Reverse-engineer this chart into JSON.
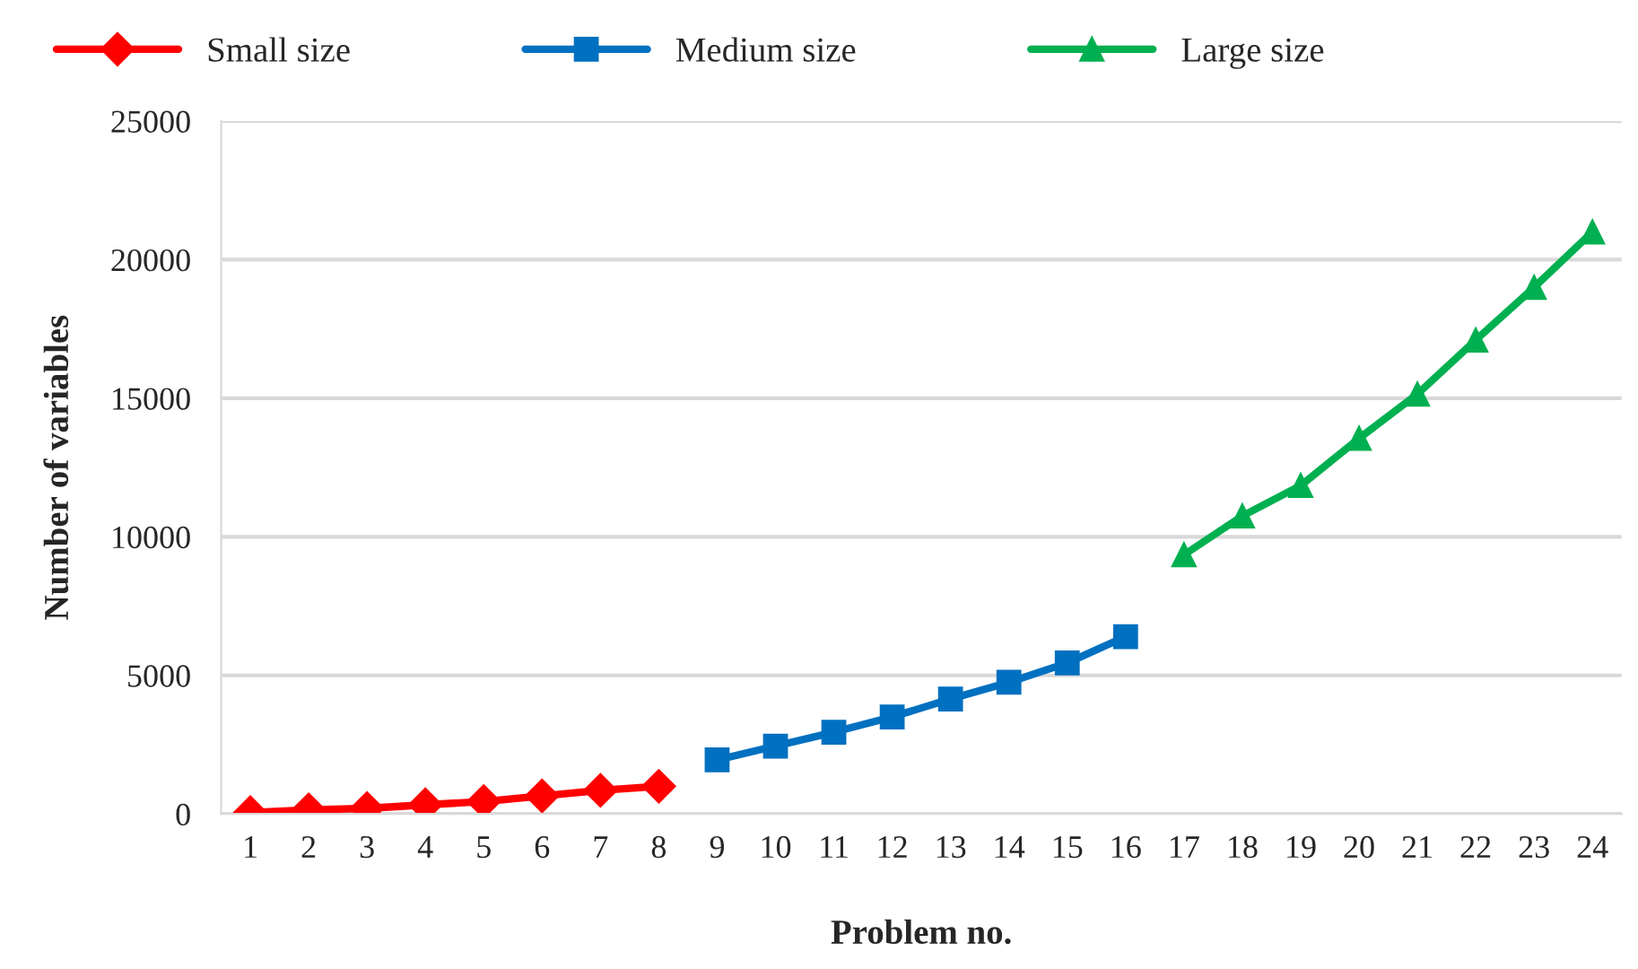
{
  "chart_data": {
    "type": "line",
    "xlabel": "Problem no.",
    "ylabel": "Number of variables",
    "categories": [
      "1",
      "2",
      "3",
      "4",
      "5",
      "6",
      "7",
      "8",
      "9",
      "10",
      "11",
      "12",
      "13",
      "14",
      "15",
      "16",
      "17",
      "18",
      "19",
      "20",
      "21",
      "22",
      "23",
      "24"
    ],
    "series": [
      {
        "name": "Small size",
        "color": "#ff0000",
        "marker": "diamond",
        "values": [
          50,
          150,
          200,
          330,
          450,
          650,
          850,
          1000,
          null,
          null,
          null,
          null,
          null,
          null,
          null,
          null,
          null,
          null,
          null,
          null,
          null,
          null,
          null,
          null
        ]
      },
      {
        "name": "Medium size",
        "color": "#0070c0",
        "marker": "square",
        "values": [
          null,
          null,
          null,
          null,
          null,
          null,
          null,
          null,
          1950,
          2450,
          2950,
          3500,
          4150,
          4750,
          5450,
          6400,
          null,
          null,
          null,
          null,
          null,
          null,
          null,
          null
        ]
      },
      {
        "name": "Large size",
        "color": "#00b050",
        "marker": "triangle",
        "values": [
          null,
          null,
          null,
          null,
          null,
          null,
          null,
          null,
          null,
          null,
          null,
          null,
          null,
          null,
          null,
          null,
          9350,
          10750,
          11850,
          13550,
          15150,
          17100,
          19000,
          21000
        ]
      }
    ],
    "ylim": [
      0,
      25000
    ],
    "yticks": [
      0,
      5000,
      10000,
      15000,
      20000,
      25000
    ],
    "grid": "y",
    "legend": "top",
    "line_style": "solid"
  }
}
